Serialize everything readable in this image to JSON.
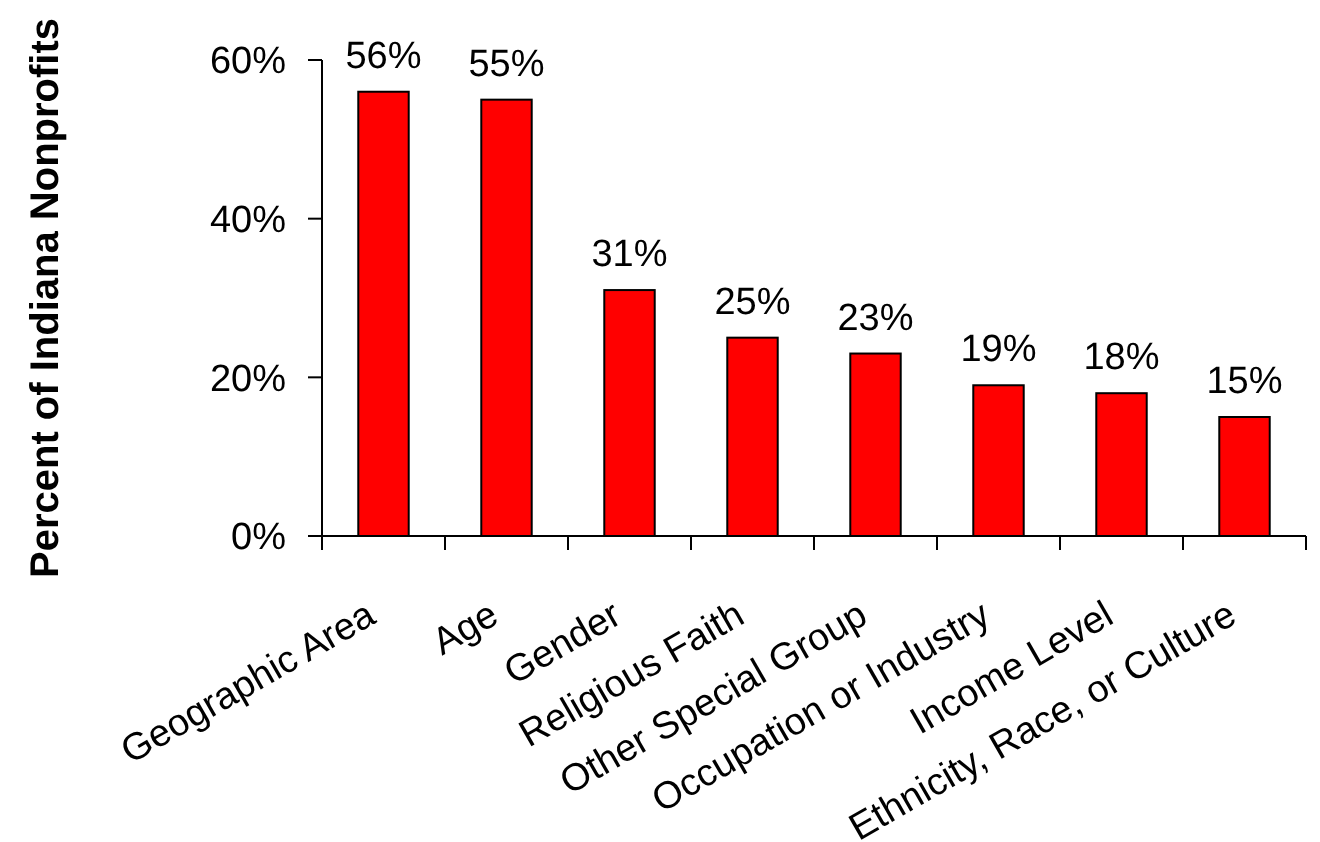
{
  "chart_data": {
    "type": "bar",
    "ylabel": "Percent of Indiana Nonprofits",
    "categories": [
      "Geographic Area",
      "Age",
      "Gender",
      "Religious Faith",
      "Other Special Group",
      "Occupation or Industry",
      "Income Level",
      "Ethnicity, Race, or Culture"
    ],
    "values": [
      56,
      55,
      31,
      25,
      23,
      19,
      18,
      15
    ],
    "value_labels": [
      "56%",
      "55%",
      "31%",
      "25%",
      "23%",
      "19%",
      "18%",
      "15%"
    ],
    "color": "#ff0000",
    "ylim": [
      0,
      60
    ],
    "yticks": [
      {
        "value": 0,
        "label": "0%"
      },
      {
        "value": 20,
        "label": "20%"
      },
      {
        "value": 40,
        "label": "40%"
      },
      {
        "value": 60,
        "label": "60%"
      }
    ]
  }
}
